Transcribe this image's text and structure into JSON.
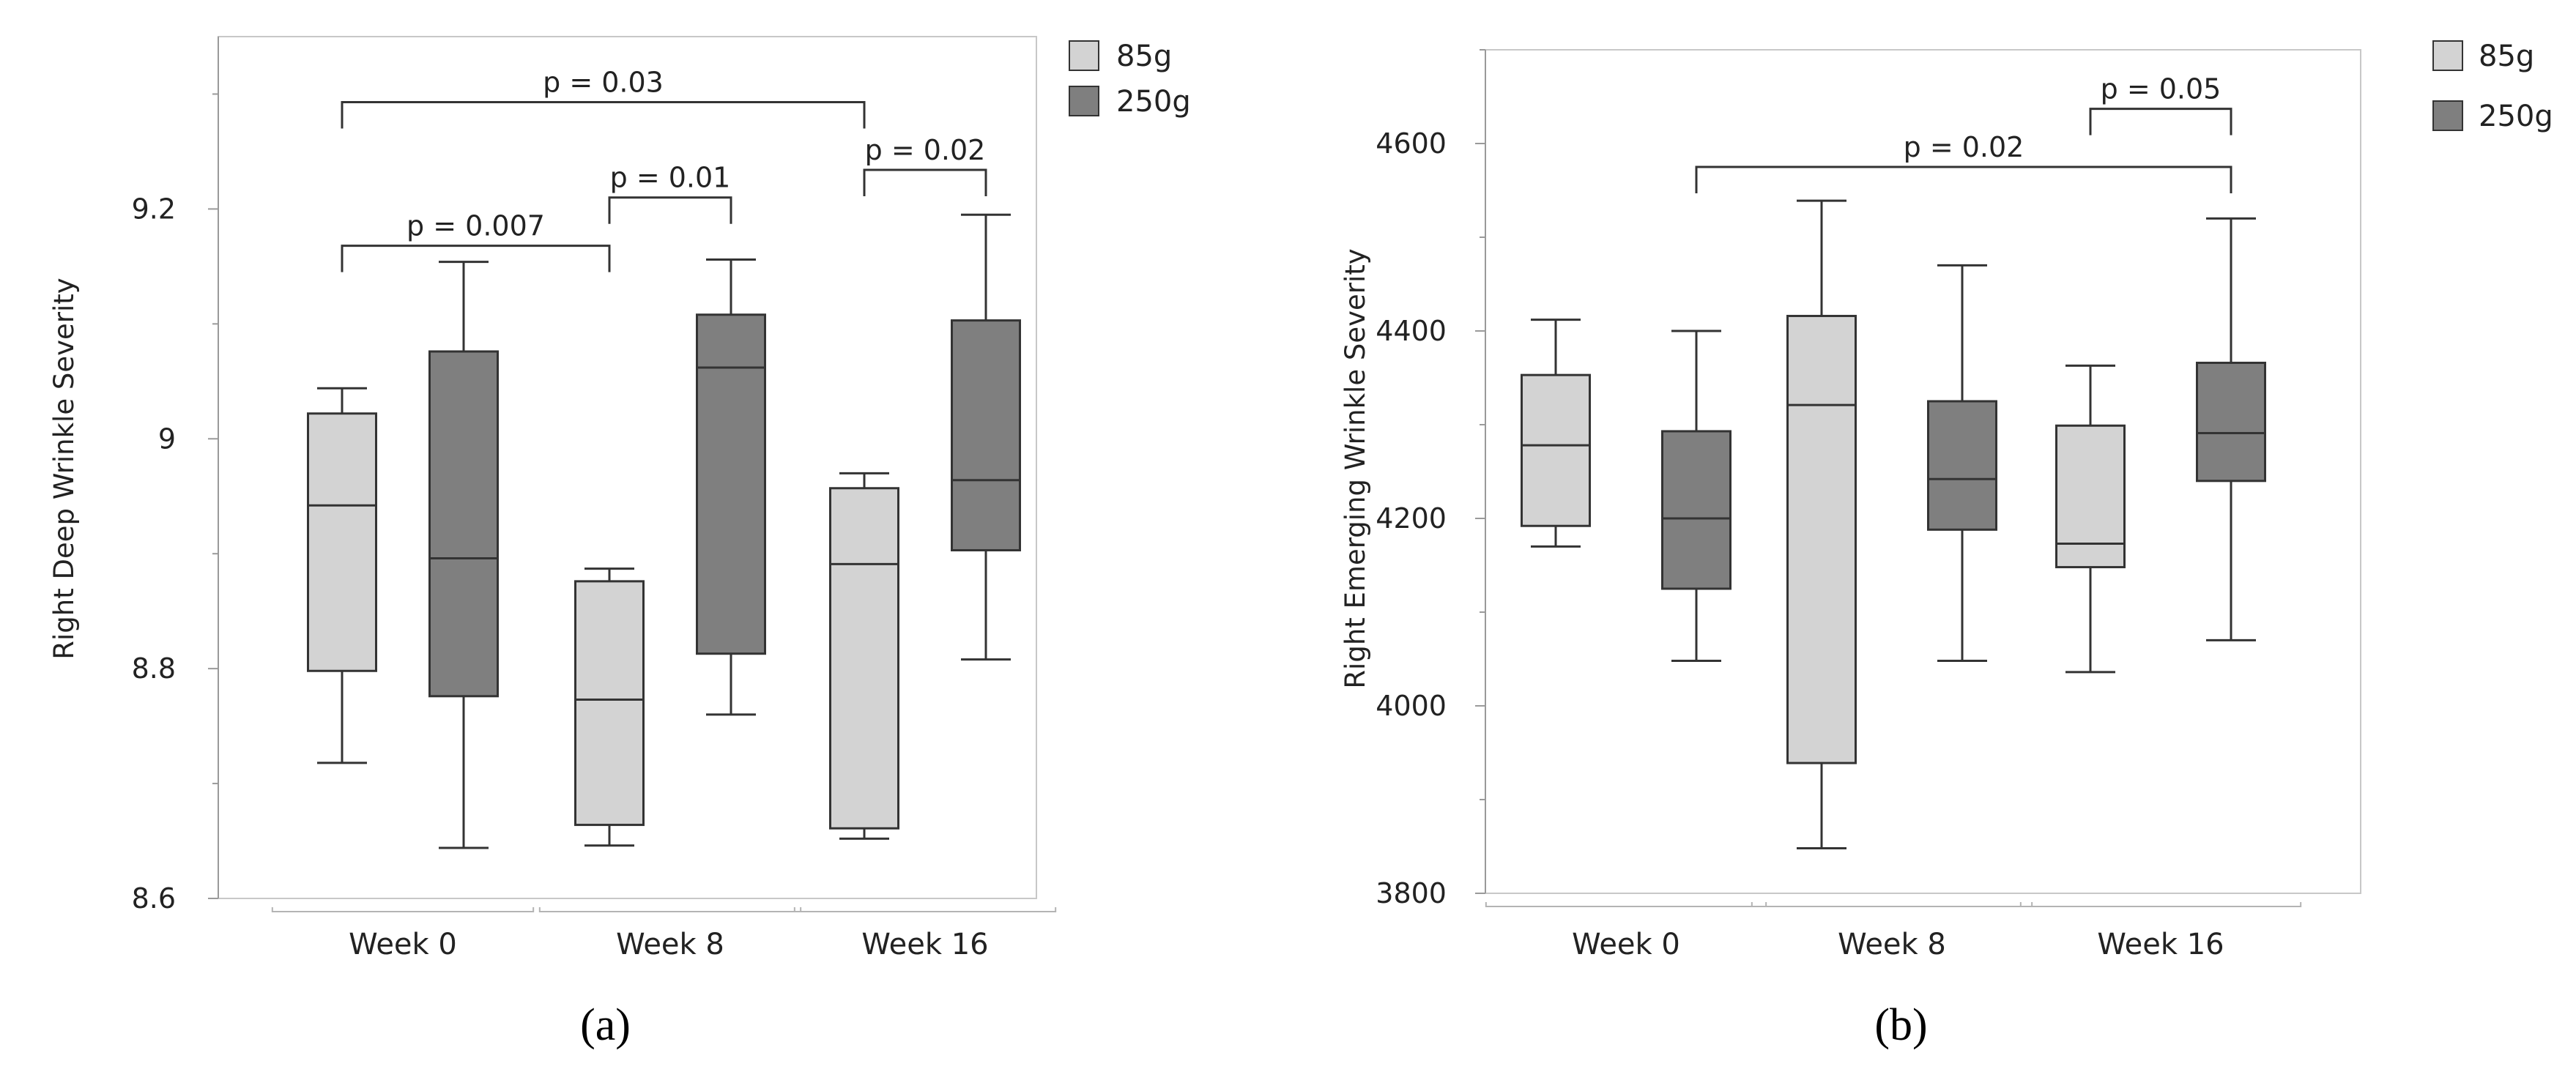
{
  "chart_data": [
    {
      "type": "box",
      "panel_label": "(a)",
      "ylabel": "Right Deep Wrinkle Severity",
      "ylim": [
        8.6,
        9.35
      ],
      "yticks": [
        8.6,
        8.8,
        9,
        9.2
      ],
      "ytick_labels": [
        "8.6",
        "8.8",
        "9",
        "9.2"
      ],
      "categories": [
        "Week 0",
        "Week 8",
        "Week 16"
      ],
      "legend": [
        {
          "name": "85g",
          "color": "#d3d3d3"
        },
        {
          "name": "250g",
          "color": "#7f7f7f"
        }
      ],
      "series": [
        {
          "name": "85g",
          "color": "#d3d3d3",
          "boxes": [
            {
              "min": 8.718,
              "q1": 8.798,
              "median": 8.942,
              "q3": 9.022,
              "max": 9.044
            },
            {
              "min": 8.646,
              "q1": 8.664,
              "median": 8.773,
              "q3": 8.876,
              "max": 8.887
            },
            {
              "min": 8.652,
              "q1": 8.661,
              "median": 8.891,
              "q3": 8.957,
              "max": 8.97
            }
          ]
        },
        {
          "name": "250g",
          "color": "#7f7f7f",
          "boxes": [
            {
              "min": 8.644,
              "q1": 8.776,
              "median": 8.896,
              "q3": 9.076,
              "max": 9.154
            },
            {
              "min": 8.76,
              "q1": 8.813,
              "median": 9.062,
              "q3": 9.108,
              "max": 9.156
            },
            {
              "min": 8.808,
              "q1": 8.903,
              "median": 8.964,
              "q3": 9.103,
              "max": 9.195
            }
          ]
        }
      ],
      "annotations": [
        {
          "label": "p = 0.007",
          "from": [
            0,
            0
          ],
          "to": [
            1,
            0
          ],
          "y": 9.168
        },
        {
          "label": "p = 0.01",
          "from": [
            1,
            0
          ],
          "to": [
            1,
            1
          ],
          "y": 9.21
        },
        {
          "label": "p = 0.03",
          "from": [
            0,
            0
          ],
          "to": [
            2,
            0
          ],
          "y": 9.293
        },
        {
          "label": "p = 0.02",
          "from": [
            2,
            0
          ],
          "to": [
            2,
            1
          ],
          "y": 9.234
        }
      ]
    },
    {
      "type": "box",
      "panel_label": "(b)",
      "ylabel": "Right Emerging Wrinkle Severity",
      "ylim": [
        3800,
        4700
      ],
      "yticks": [
        3800,
        4000,
        4200,
        4400,
        4600
      ],
      "ytick_labels": [
        "3800",
        "4000",
        "4200",
        "4400",
        "4600"
      ],
      "categories": [
        "Week 0",
        "Week 8",
        "Week 16"
      ],
      "legend": [
        {
          "name": "85g",
          "color": "#d3d3d3"
        },
        {
          "name": "250g",
          "color": "#7f7f7f"
        }
      ],
      "series": [
        {
          "name": "85g",
          "color": "#d3d3d3",
          "boxes": [
            {
              "min": 4170,
              "q1": 4192,
              "median": 4278,
              "q3": 4353,
              "max": 4412
            },
            {
              "min": 3848,
              "q1": 3939,
              "median": 4321,
              "q3": 4416,
              "max": 4539
            },
            {
              "min": 4036,
              "q1": 4148,
              "median": 4173,
              "q3": 4299,
              "max": 4363
            }
          ]
        },
        {
          "name": "250g",
          "color": "#7f7f7f",
          "boxes": [
            {
              "min": 4048,
              "q1": 4125,
              "median": 4200,
              "q3": 4293,
              "max": 4400
            },
            {
              "min": 4048,
              "q1": 4188,
              "median": 4242,
              "q3": 4325,
              "max": 4470
            },
            {
              "min": 4070,
              "q1": 4240,
              "median": 4291,
              "q3": 4366,
              "max": 4520
            }
          ]
        }
      ],
      "annotations": [
        {
          "label": "p = 0.02",
          "from": [
            0,
            1
          ],
          "to": [
            2,
            1
          ],
          "y": 4575
        },
        {
          "label": "p = 0.05",
          "from": [
            2,
            0
          ],
          "to": [
            2,
            1
          ],
          "y": 4637
        }
      ]
    }
  ]
}
